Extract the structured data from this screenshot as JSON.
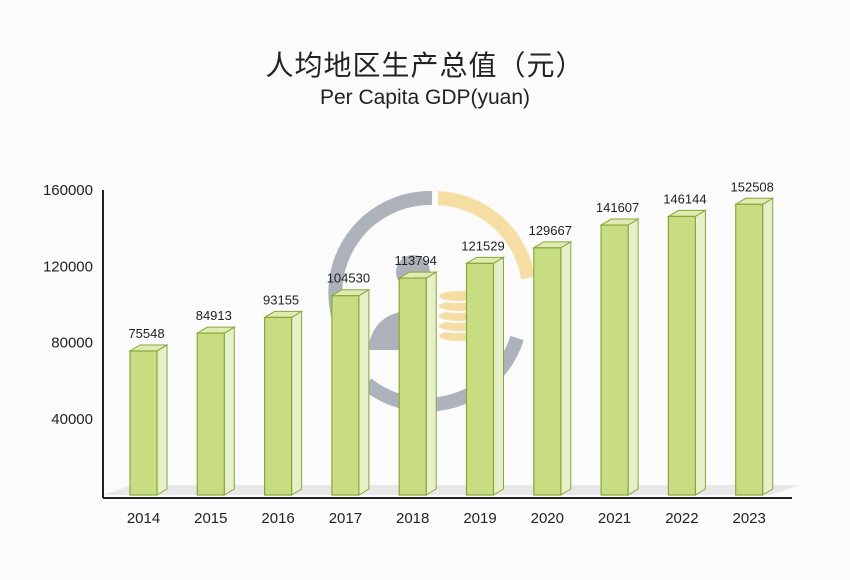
{
  "title": "人均地区生产总值（元）",
  "subtitle": "Per Capita GDP(yuan)",
  "colors": {
    "bar_front": "#c8dc82",
    "bar_side": "#e6f0c8",
    "bar_top": "#dfebb2",
    "bar_stroke": "#86a83a",
    "floor": "#e8e8e8",
    "axis": "#222222",
    "watermark_gray": "#a9afb7",
    "watermark_yellow": "#f6dca0"
  },
  "chart_data": {
    "type": "bar",
    "title": "人均地区生产总值（元）",
    "subtitle": "Per Capita GDP(yuan)",
    "categories": [
      "2014",
      "2015",
      "2016",
      "2017",
      "2018",
      "2019",
      "2020",
      "2021",
      "2022",
      "2023"
    ],
    "values": [
      75548,
      84913,
      93155,
      104530,
      113794,
      121529,
      129667,
      141607,
      146144,
      152508
    ],
    "ylim": [
      0,
      160000
    ],
    "yticks": [
      "160000",
      "120000",
      "80000",
      "40000"
    ],
    "grid": false,
    "legend": "none"
  }
}
